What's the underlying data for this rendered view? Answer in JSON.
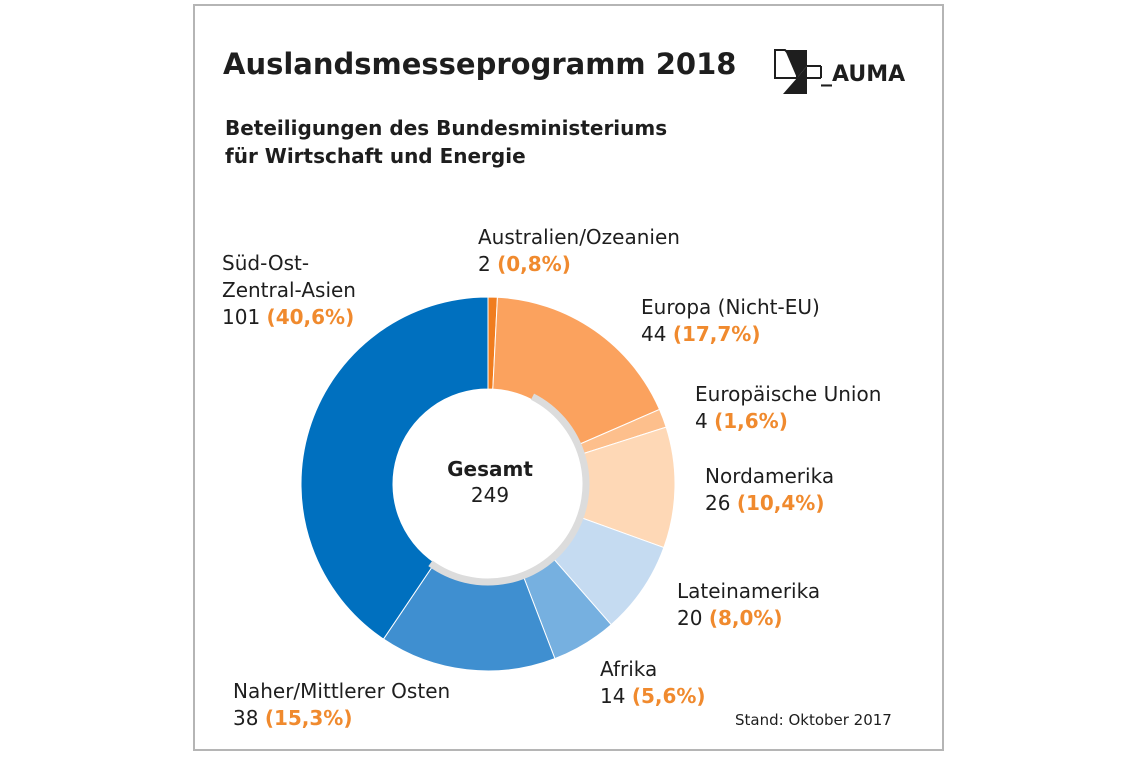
{
  "title": "Auslandsmesseprogramm 2018",
  "subtitle_lines": [
    "Beteiligungen des Bundesministeriums",
    "für Wirtschaft und Energie"
  ],
  "logo": {
    "text": "_AUMA",
    "icon": "auma-logo-icon"
  },
  "center": {
    "label": "Gesamt",
    "value": "249"
  },
  "footnote": "Stand: Oktober 2017",
  "chart_data": {
    "type": "pie",
    "variant": "donut",
    "total": 249,
    "slices": [
      {
        "label": "Australien/Ozeanien",
        "value": 2,
        "percent_label": "(0,8%)",
        "value_label": "2",
        "color": "#f07d1f"
      },
      {
        "label": "Europa (Nicht-EU)",
        "value": 44,
        "percent_label": "(17,7%)",
        "value_label": "44",
        "color": "#fba25e"
      },
      {
        "label": "Europäische Union",
        "value": 4,
        "percent_label": "(1,6%)",
        "value_label": "4",
        "color": "#fdbf8c"
      },
      {
        "label": "Nordamerika",
        "value": 26,
        "percent_label": "(10,4%)",
        "value_label": "26",
        "color": "#fed8b6"
      },
      {
        "label": "Lateinamerika",
        "value": 20,
        "percent_label": "(8,0%)",
        "value_label": "20",
        "color": "#c5dbf1"
      },
      {
        "label": "Afrika",
        "value": 14,
        "percent_label": "(5,6%)",
        "value_label": "14",
        "color": "#76b0e0"
      },
      {
        "label": "Naher/Mittlerer Osten",
        "value": 38,
        "percent_label": "(15,3%)",
        "value_label": "38",
        "color": "#3f8fd0"
      },
      {
        "label": "Süd-Ost-Zentral-Asien",
        "label_lines": [
          "Süd-Ost-",
          "Zentral-Asien"
        ],
        "value": 101,
        "percent_label": "(40,6%)",
        "value_label": "101",
        "color": "#0070bf"
      }
    ]
  }
}
